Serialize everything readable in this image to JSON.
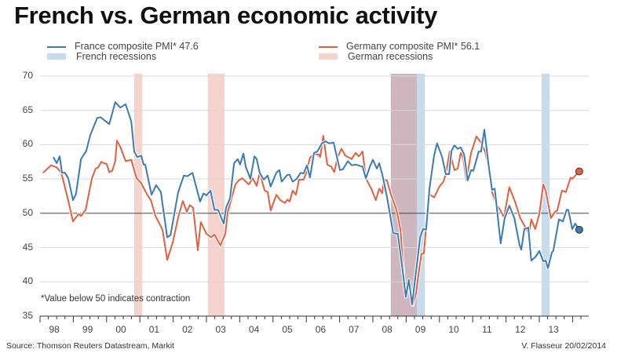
{
  "chart_data": {
    "type": "line",
    "title": "French vs. German economic activity",
    "xlabel": "",
    "ylabel": "",
    "xlim": [
      1998,
      2014.5
    ],
    "ylim": [
      35,
      70
    ],
    "yticks": [
      "70",
      "65",
      "60",
      "55",
      "50",
      "45",
      "40",
      "35"
    ],
    "xticks": [
      "98",
      "99",
      "00",
      "01",
      "02",
      "03",
      "04",
      "05",
      "06",
      "07",
      "08",
      "09",
      "10",
      "11",
      "12",
      "13"
    ],
    "grid": true,
    "legend_position": "top",
    "legend": {
      "france": "France composite PMI* 47.6",
      "germany": "Germany composite PMI* 56.1",
      "french_rec": "French recessions",
      "german_rec": "German recessions"
    },
    "colors": {
      "france": "#3a7ab5",
      "germany": "#e0603f",
      "french_rec": "#c6dcee",
      "german_rec": "#f6d3cc",
      "overlap": "#cdb6bd"
    },
    "recessions": {
      "german": [
        [
          2000.83,
          2001.07
        ],
        [
          2003.04,
          2003.54
        ],
        [
          2008.54,
          2009.32
        ]
      ],
      "french": [
        [
          2008.54,
          2009.56
        ],
        [
          2013.07,
          2013.31
        ]
      ]
    },
    "reference_line": 50,
    "annotation": "*Value below 50 indicates contraction",
    "series": [
      {
        "name": "France composite PMI",
        "last_value": 47.6,
        "points": [
          [
            1998.4,
            58.2
          ],
          [
            1998.5,
            57.3
          ],
          [
            1998.59,
            58.3
          ],
          [
            1998.66,
            55.9
          ],
          [
            1998.75,
            55.9
          ],
          [
            1998.85,
            55.1
          ],
          [
            1998.99,
            51.9
          ],
          [
            1999.08,
            52.8
          ],
          [
            1999.23,
            57.9
          ],
          [
            1999.39,
            59.1
          ],
          [
            1999.51,
            61.4
          ],
          [
            1999.72,
            63.9
          ],
          [
            1999.82,
            64.0
          ],
          [
            2000.08,
            63.0
          ],
          [
            2000.26,
            66.2
          ],
          [
            2000.41,
            65.4
          ],
          [
            2000.57,
            65.9
          ],
          [
            2000.74,
            63.4
          ],
          [
            2000.83,
            59.0
          ],
          [
            2000.92,
            58.2
          ],
          [
            2001.04,
            58.4
          ],
          [
            2001.11,
            57.1
          ],
          [
            2001.16,
            57.1
          ],
          [
            2001.35,
            52.7
          ],
          [
            2001.49,
            54.1
          ],
          [
            2001.63,
            53.1
          ],
          [
            2001.82,
            46.5
          ],
          [
            2001.92,
            46.8
          ],
          [
            2002.15,
            53.1
          ],
          [
            2002.32,
            55.5
          ],
          [
            2002.43,
            55.4
          ],
          [
            2002.58,
            55.9
          ],
          [
            2002.81,
            51.7
          ],
          [
            2002.91,
            52.9
          ],
          [
            2003.0,
            52.6
          ],
          [
            2003.12,
            53.3
          ],
          [
            2003.24,
            50.5
          ],
          [
            2003.35,
            50.5
          ],
          [
            2003.52,
            48.5
          ],
          [
            2003.59,
            50.8
          ],
          [
            2003.71,
            52.2
          ],
          [
            2003.83,
            57.3
          ],
          [
            2003.94,
            57.9
          ],
          [
            2004.01,
            57.1
          ],
          [
            2004.11,
            58.7
          ],
          [
            2004.18,
            56.8
          ],
          [
            2004.32,
            55.0
          ],
          [
            2004.44,
            58.3
          ],
          [
            2004.51,
            57.9
          ],
          [
            2004.6,
            55.9
          ],
          [
            2004.72,
            54.9
          ],
          [
            2004.84,
            55.5
          ],
          [
            2004.93,
            53.9
          ],
          [
            2005.1,
            55.9
          ],
          [
            2005.19,
            56.3
          ],
          [
            2005.26,
            54.6
          ],
          [
            2005.43,
            55.6
          ],
          [
            2005.5,
            55.6
          ],
          [
            2005.59,
            54.6
          ],
          [
            2005.71,
            55.0
          ],
          [
            2005.83,
            55.9
          ],
          [
            2005.92,
            55.8
          ],
          [
            2006.02,
            57.0
          ],
          [
            2006.11,
            55.2
          ],
          [
            2006.23,
            58.8
          ],
          [
            2006.33,
            59.0
          ],
          [
            2006.47,
            60.2
          ],
          [
            2006.58,
            60.5
          ],
          [
            2006.68,
            60.2
          ],
          [
            2006.82,
            60.3
          ],
          [
            2006.92,
            58.2
          ],
          [
            2007.01,
            56.3
          ],
          [
            2007.1,
            56.4
          ],
          [
            2007.25,
            57.6
          ],
          [
            2007.36,
            57.0
          ],
          [
            2007.48,
            57.1
          ],
          [
            2007.69,
            56.8
          ],
          [
            2007.79,
            55.1
          ],
          [
            2007.91,
            56.8
          ],
          [
            2008.0,
            57.8
          ],
          [
            2008.12,
            56.5
          ],
          [
            2008.19,
            57.3
          ],
          [
            2008.28,
            55.7
          ],
          [
            2008.42,
            52.5
          ],
          [
            2008.61,
            47.1
          ],
          [
            2008.75,
            47.0
          ],
          [
            2008.9,
            41.4
          ],
          [
            2008.99,
            37.8
          ],
          [
            2009.08,
            40.3
          ],
          [
            2009.18,
            36.7
          ],
          [
            2009.3,
            41.6
          ],
          [
            2009.42,
            46.5
          ],
          [
            2009.51,
            47.7
          ],
          [
            2009.6,
            47.6
          ],
          [
            2009.7,
            53.6
          ],
          [
            2009.84,
            58.4
          ],
          [
            2009.93,
            60.2
          ],
          [
            2010.08,
            58.2
          ],
          [
            2010.19,
            55.7
          ],
          [
            2010.29,
            55.7
          ],
          [
            2010.36,
            59.1
          ],
          [
            2010.45,
            59.9
          ],
          [
            2010.55,
            59.4
          ],
          [
            2010.64,
            59.6
          ],
          [
            2010.74,
            58.6
          ],
          [
            2010.85,
            54.8
          ],
          [
            2010.95,
            56.3
          ],
          [
            2011.02,
            56.2
          ],
          [
            2011.18,
            59.0
          ],
          [
            2011.25,
            59.0
          ],
          [
            2011.35,
            62.2
          ],
          [
            2011.47,
            57.3
          ],
          [
            2011.58,
            53.4
          ],
          [
            2011.66,
            53.6
          ],
          [
            2011.84,
            45.6
          ],
          [
            2011.96,
            49.3
          ],
          [
            2012.1,
            51.1
          ],
          [
            2012.25,
            49.3
          ],
          [
            2012.41,
            45.3
          ],
          [
            2012.46,
            44.7
          ],
          [
            2012.55,
            47.7
          ],
          [
            2012.67,
            47.9
          ],
          [
            2012.76,
            43.1
          ],
          [
            2012.88,
            43.6
          ],
          [
            2013.0,
            44.5
          ],
          [
            2013.12,
            43.0
          ],
          [
            2013.19,
            43.1
          ],
          [
            2013.26,
            42.0
          ],
          [
            2013.38,
            44.3
          ],
          [
            2013.42,
            44.5
          ],
          [
            2013.59,
            49.1
          ],
          [
            2013.71,
            48.8
          ],
          [
            2013.82,
            50.5
          ],
          [
            2013.87,
            50.5
          ],
          [
            2013.99,
            47.7
          ],
          [
            2014.08,
            48.5
          ],
          [
            2014.2,
            47.6
          ]
        ]
      },
      {
        "name": "Germany composite PMI",
        "last_value": 56.1,
        "points": [
          [
            1998.09,
            55.9
          ],
          [
            1998.33,
            57.0
          ],
          [
            1998.5,
            56.7
          ],
          [
            1998.64,
            55.9
          ],
          [
            1998.83,
            52.2
          ],
          [
            1998.99,
            48.8
          ],
          [
            1999.16,
            49.9
          ],
          [
            1999.23,
            49.6
          ],
          [
            1999.37,
            50.5
          ],
          [
            1999.56,
            55.1
          ],
          [
            1999.67,
            56.5
          ],
          [
            1999.75,
            56.7
          ],
          [
            1999.84,
            57.5
          ],
          [
            1999.91,
            57.3
          ],
          [
            2000.0,
            57.2
          ],
          [
            2000.08,
            56.0
          ],
          [
            2000.17,
            56.2
          ],
          [
            2000.26,
            57.6
          ],
          [
            2000.31,
            60.6
          ],
          [
            2000.41,
            59.7
          ],
          [
            2000.57,
            57.6
          ],
          [
            2000.74,
            57.8
          ],
          [
            2000.9,
            55.1
          ],
          [
            2001.04,
            54.4
          ],
          [
            2001.21,
            52.8
          ],
          [
            2001.33,
            51.9
          ],
          [
            2001.47,
            49.6
          ],
          [
            2001.68,
            47.6
          ],
          [
            2001.82,
            43.2
          ],
          [
            2001.99,
            45.8
          ],
          [
            2002.15,
            49.4
          ],
          [
            2002.29,
            51.8
          ],
          [
            2002.41,
            50.2
          ],
          [
            2002.5,
            51.2
          ],
          [
            2002.6,
            50.8
          ],
          [
            2002.74,
            44.6
          ],
          [
            2002.83,
            48.7
          ],
          [
            2003.0,
            47.0
          ],
          [
            2003.14,
            46.5
          ],
          [
            2003.24,
            46.9
          ],
          [
            2003.42,
            45.3
          ],
          [
            2003.57,
            47.1
          ],
          [
            2003.64,
            50.2
          ],
          [
            2003.87,
            54.2
          ],
          [
            2003.97,
            54.8
          ],
          [
            2004.08,
            55.1
          ],
          [
            2004.27,
            54.2
          ],
          [
            2004.39,
            55.1
          ],
          [
            2004.51,
            54.0
          ],
          [
            2004.6,
            55.9
          ],
          [
            2004.75,
            53.3
          ],
          [
            2004.84,
            53.1
          ],
          [
            2004.93,
            50.4
          ],
          [
            2005.1,
            52.7
          ],
          [
            2005.22,
            51.9
          ],
          [
            2005.36,
            51.5
          ],
          [
            2005.43,
            52.0
          ],
          [
            2005.5,
            51.7
          ],
          [
            2005.59,
            53.3
          ],
          [
            2005.69,
            52.7
          ],
          [
            2005.78,
            54.9
          ],
          [
            2005.92,
            54.9
          ],
          [
            2006.0,
            55.9
          ],
          [
            2006.11,
            58.1
          ],
          [
            2006.23,
            58.6
          ],
          [
            2006.37,
            58.6
          ],
          [
            2006.42,
            58.2
          ],
          [
            2006.51,
            61.3
          ],
          [
            2006.63,
            57.1
          ],
          [
            2006.75,
            56.8
          ],
          [
            2006.84,
            56.0
          ],
          [
            2006.94,
            58.2
          ],
          [
            2007.06,
            59.4
          ],
          [
            2007.17,
            58.4
          ],
          [
            2007.29,
            58.1
          ],
          [
            2007.36,
            57.9
          ],
          [
            2007.48,
            58.8
          ],
          [
            2007.58,
            58.3
          ],
          [
            2007.69,
            59.0
          ],
          [
            2007.79,
            55.1
          ],
          [
            2007.95,
            53.6
          ],
          [
            2008.09,
            51.9
          ],
          [
            2008.19,
            53.6
          ],
          [
            2008.28,
            52.9
          ],
          [
            2008.33,
            54.9
          ],
          [
            2008.42,
            54.8
          ],
          [
            2008.54,
            52.8
          ],
          [
            2008.71,
            50.5
          ],
          [
            2008.83,
            47.6
          ],
          [
            2008.94,
            39.9
          ],
          [
            2009.06,
            39.7
          ],
          [
            2009.2,
            36.6
          ],
          [
            2009.3,
            38.4
          ],
          [
            2009.37,
            41.1
          ],
          [
            2009.46,
            44.1
          ],
          [
            2009.53,
            44.1
          ],
          [
            2009.7,
            53.9
          ],
          [
            2009.72,
            52.7
          ],
          [
            2009.84,
            52.3
          ],
          [
            2010.0,
            53.9
          ],
          [
            2010.12,
            54.6
          ],
          [
            2010.19,
            55.7
          ],
          [
            2010.31,
            59.0
          ],
          [
            2010.45,
            56.3
          ],
          [
            2010.55,
            56.5
          ],
          [
            2010.64,
            58.8
          ],
          [
            2010.71,
            58.2
          ],
          [
            2010.81,
            54.8
          ],
          [
            2010.95,
            58.8
          ],
          [
            2011.11,
            61.2
          ],
          [
            2011.25,
            60.3
          ],
          [
            2011.37,
            59.0
          ],
          [
            2011.49,
            56.5
          ],
          [
            2011.58,
            53.1
          ],
          [
            2011.7,
            51.4
          ],
          [
            2011.82,
            50.5
          ],
          [
            2011.94,
            49.4
          ],
          [
            2012.1,
            53.8
          ],
          [
            2012.27,
            51.7
          ],
          [
            2012.43,
            49.3
          ],
          [
            2012.69,
            47.0
          ],
          [
            2012.76,
            49.1
          ],
          [
            2012.88,
            47.7
          ],
          [
            2013.0,
            49.9
          ],
          [
            2013.12,
            54.2
          ],
          [
            2013.19,
            53.3
          ],
          [
            2013.35,
            49.3
          ],
          [
            2013.47,
            50.2
          ],
          [
            2013.54,
            50.4
          ],
          [
            2013.68,
            53.3
          ],
          [
            2013.8,
            53.1
          ],
          [
            2013.94,
            55.2
          ],
          [
            2013.99,
            55.0
          ],
          [
            2014.2,
            56.1
          ]
        ]
      }
    ]
  },
  "footer": {
    "source": "Source: Thomson Reuters Datastream, Markit",
    "credit": "V. Flasseur 20/02/2014"
  }
}
